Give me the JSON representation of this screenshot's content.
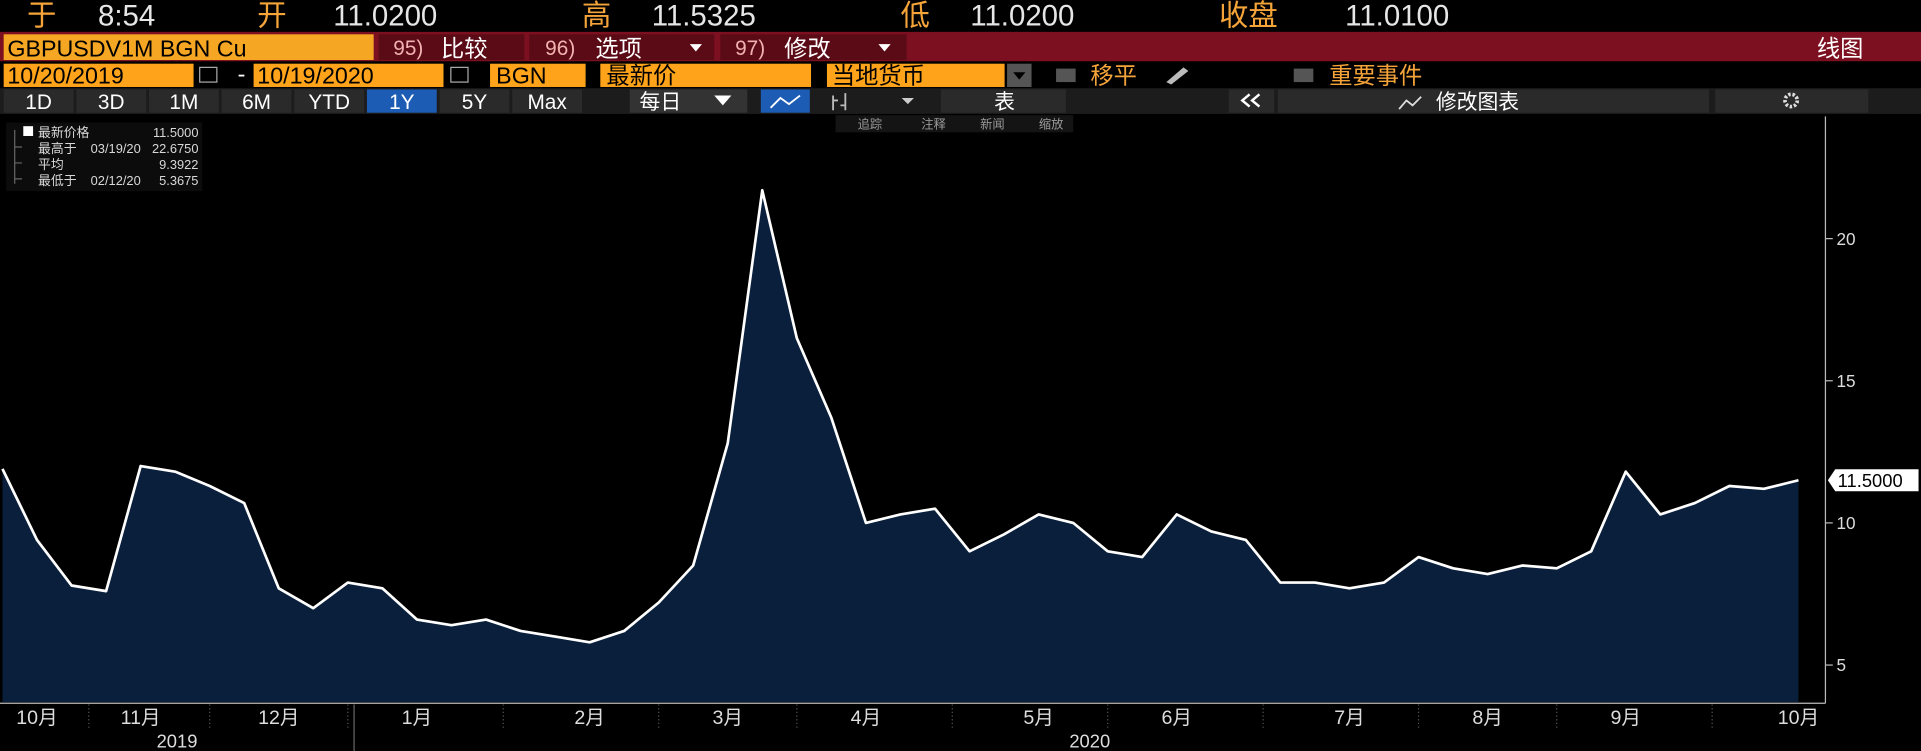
{
  "header": {
    "time_label": "于",
    "time": "8:54",
    "open_label": "开",
    "open": "11.0200",
    "high_label": "高",
    "high": "11.5325",
    "low_label": "低",
    "low": "11.0200",
    "close_label": "收盘",
    "close": "11.0100"
  },
  "toolbar": {
    "ticker": "GBPUSDV1M BGN Cu",
    "menus": [
      {
        "num": "95)",
        "label": "比较"
      },
      {
        "num": "96)",
        "label": "选项"
      },
      {
        "num": "97)",
        "label": "修改"
      }
    ],
    "chart_kind": "线图"
  },
  "settings": {
    "start": "10/20/2019",
    "dash": "-",
    "end": "10/19/2020",
    "source": "BGN",
    "field": "最新价",
    "currency": "当地货币",
    "smooth": "移平",
    "events": "重要事件"
  },
  "ranges": [
    "1D",
    "3D",
    "1M",
    "6M",
    "YTD",
    "1Y",
    "5Y",
    "Max"
  ],
  "selected_range": 5,
  "frequency": "每日",
  "table": "表",
  "edit_chart": "修改图表",
  "tools": [
    "追踪",
    "注释",
    "新闻",
    "缩放"
  ],
  "stats": [
    {
      "label": "最新价格",
      "value": "11.5000"
    },
    {
      "label": "最高于",
      "date": "03/19/20",
      "value": "22.6750"
    },
    {
      "label": "平均",
      "value": "9.3922"
    },
    {
      "label": "最低于",
      "date": "02/12/20",
      "value": "5.3675"
    }
  ],
  "chart_data": {
    "type": "area",
    "categories": [
      null,
      "10月",
      null,
      null,
      "11月",
      null,
      null,
      null,
      "12月",
      null,
      null,
      null,
      "1月",
      null,
      null,
      null,
      null,
      "2月",
      null,
      null,
      null,
      "3月",
      null,
      null,
      null,
      "4月",
      null,
      null,
      null,
      null,
      "5月",
      null,
      null,
      null,
      "6月",
      null,
      null,
      null,
      null,
      "7月",
      null,
      null,
      null,
      "8月",
      null,
      null,
      null,
      "9月",
      null,
      null,
      null,
      null,
      "10月"
    ],
    "x_groups": [
      "2019",
      "2020"
    ],
    "values": [
      11.9,
      9.4,
      7.8,
      7.6,
      12.0,
      11.8,
      11.3,
      10.7,
      7.7,
      7.0,
      7.9,
      7.7,
      6.6,
      6.4,
      6.6,
      6.2,
      6.0,
      5.8,
      6.2,
      7.2,
      8.5,
      12.8,
      21.7,
      16.5,
      13.7,
      10.0,
      10.3,
      10.5,
      9.0,
      9.6,
      10.3,
      10.0,
      9.0,
      8.8,
      10.3,
      9.7,
      9.4,
      7.9,
      7.9,
      7.7,
      7.9,
      8.8,
      8.4,
      8.2,
      8.5,
      8.4,
      9.0,
      11.8,
      10.3,
      10.7,
      11.3,
      11.2,
      11.5
    ],
    "last_value_label": "11.5000",
    "color": "#ffffff",
    "fill": "#0a1f3b",
    "ylim": [
      3.7,
      24.3
    ],
    "yticks": [
      5,
      10,
      15,
      20
    ],
    "grid": false
  }
}
